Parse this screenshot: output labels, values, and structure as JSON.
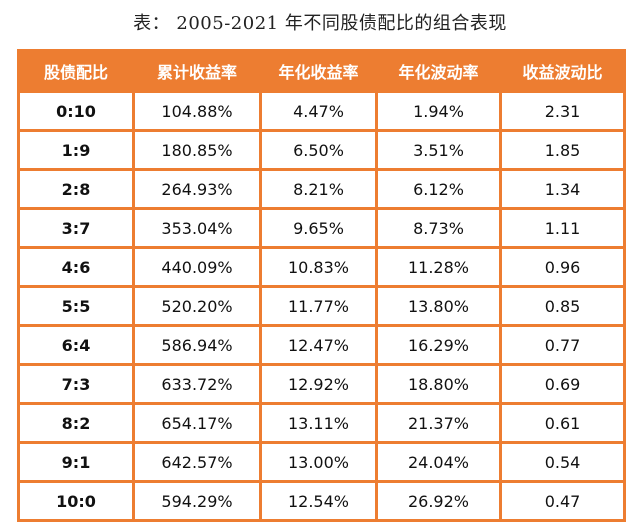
{
  "title": "表：  2005-2021 年不同股债配比的组合表现",
  "colors": {
    "header_bg": "#ED7D31",
    "header_text": "#ffffff",
    "border": "#ED7D31"
  },
  "chart_data": {
    "type": "table",
    "columns": [
      "股债配比",
      "累计收益率",
      "年化收益率",
      "年化波动率",
      "收益波动比"
    ],
    "rows": [
      [
        "0:10",
        "104.88%",
        "4.47%",
        "1.94%",
        "2.31"
      ],
      [
        "1:9",
        "180.85%",
        "6.50%",
        "3.51%",
        "1.85"
      ],
      [
        "2:8",
        "264.93%",
        "8.21%",
        "6.12%",
        "1.34"
      ],
      [
        "3:7",
        "353.04%",
        "9.65%",
        "8.73%",
        "1.11"
      ],
      [
        "4:6",
        "440.09%",
        "10.83%",
        "11.28%",
        "0.96"
      ],
      [
        "5:5",
        "520.20%",
        "11.77%",
        "13.80%",
        "0.85"
      ],
      [
        "6:4",
        "586.94%",
        "12.47%",
        "16.29%",
        "0.77"
      ],
      [
        "7:3",
        "633.72%",
        "12.92%",
        "18.80%",
        "0.69"
      ],
      [
        "8:2",
        "654.17%",
        "13.11%",
        "21.37%",
        "0.61"
      ],
      [
        "9:1",
        "642.57%",
        "13.00%",
        "24.04%",
        "0.54"
      ],
      [
        "10:0",
        "594.29%",
        "12.54%",
        "26.92%",
        "0.47"
      ]
    ]
  }
}
